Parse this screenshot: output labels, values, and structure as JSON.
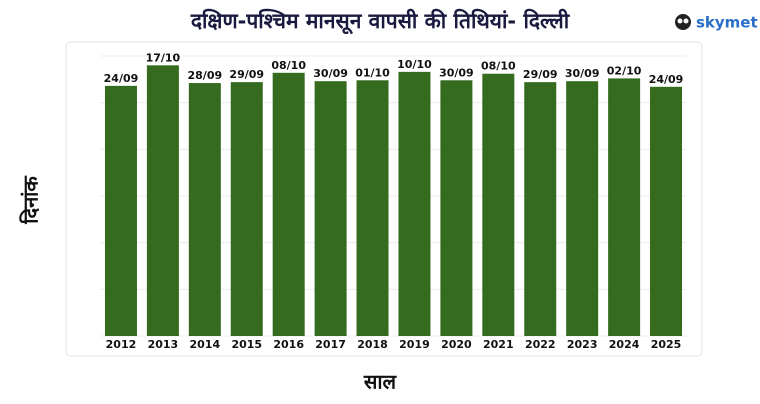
{
  "chart_data": {
    "type": "bar",
    "title": "दक्षिण-पश्चिम मानसून वापसी की तिथियां- दिल्ली",
    "logo": "skymet",
    "y_label": "दिनांक",
    "x_label": "साल",
    "categories": [
      "2012",
      "2013",
      "2014",
      "2015",
      "2016",
      "2017",
      "2018",
      "2019",
      "2020",
      "2021",
      "2022",
      "2023",
      "2024",
      "2025"
    ],
    "values": [
      268,
      290,
      271,
      272,
      282,
      273,
      274,
      283,
      274,
      281,
      272,
      273,
      276,
      267
    ],
    "value_labels": [
      "24/09",
      "17/10",
      "28/09",
      "29/09",
      "08/10",
      "30/09",
      "01/10",
      "10/10",
      "30/09",
      "08/10",
      "29/09",
      "30/09",
      "02/10",
      "24/09"
    ],
    "color": "#346b1f",
    "ylim": [
      0,
      300
    ],
    "yticks": [
      0,
      50,
      100,
      150,
      200,
      250,
      300
    ],
    "grid": true
  }
}
